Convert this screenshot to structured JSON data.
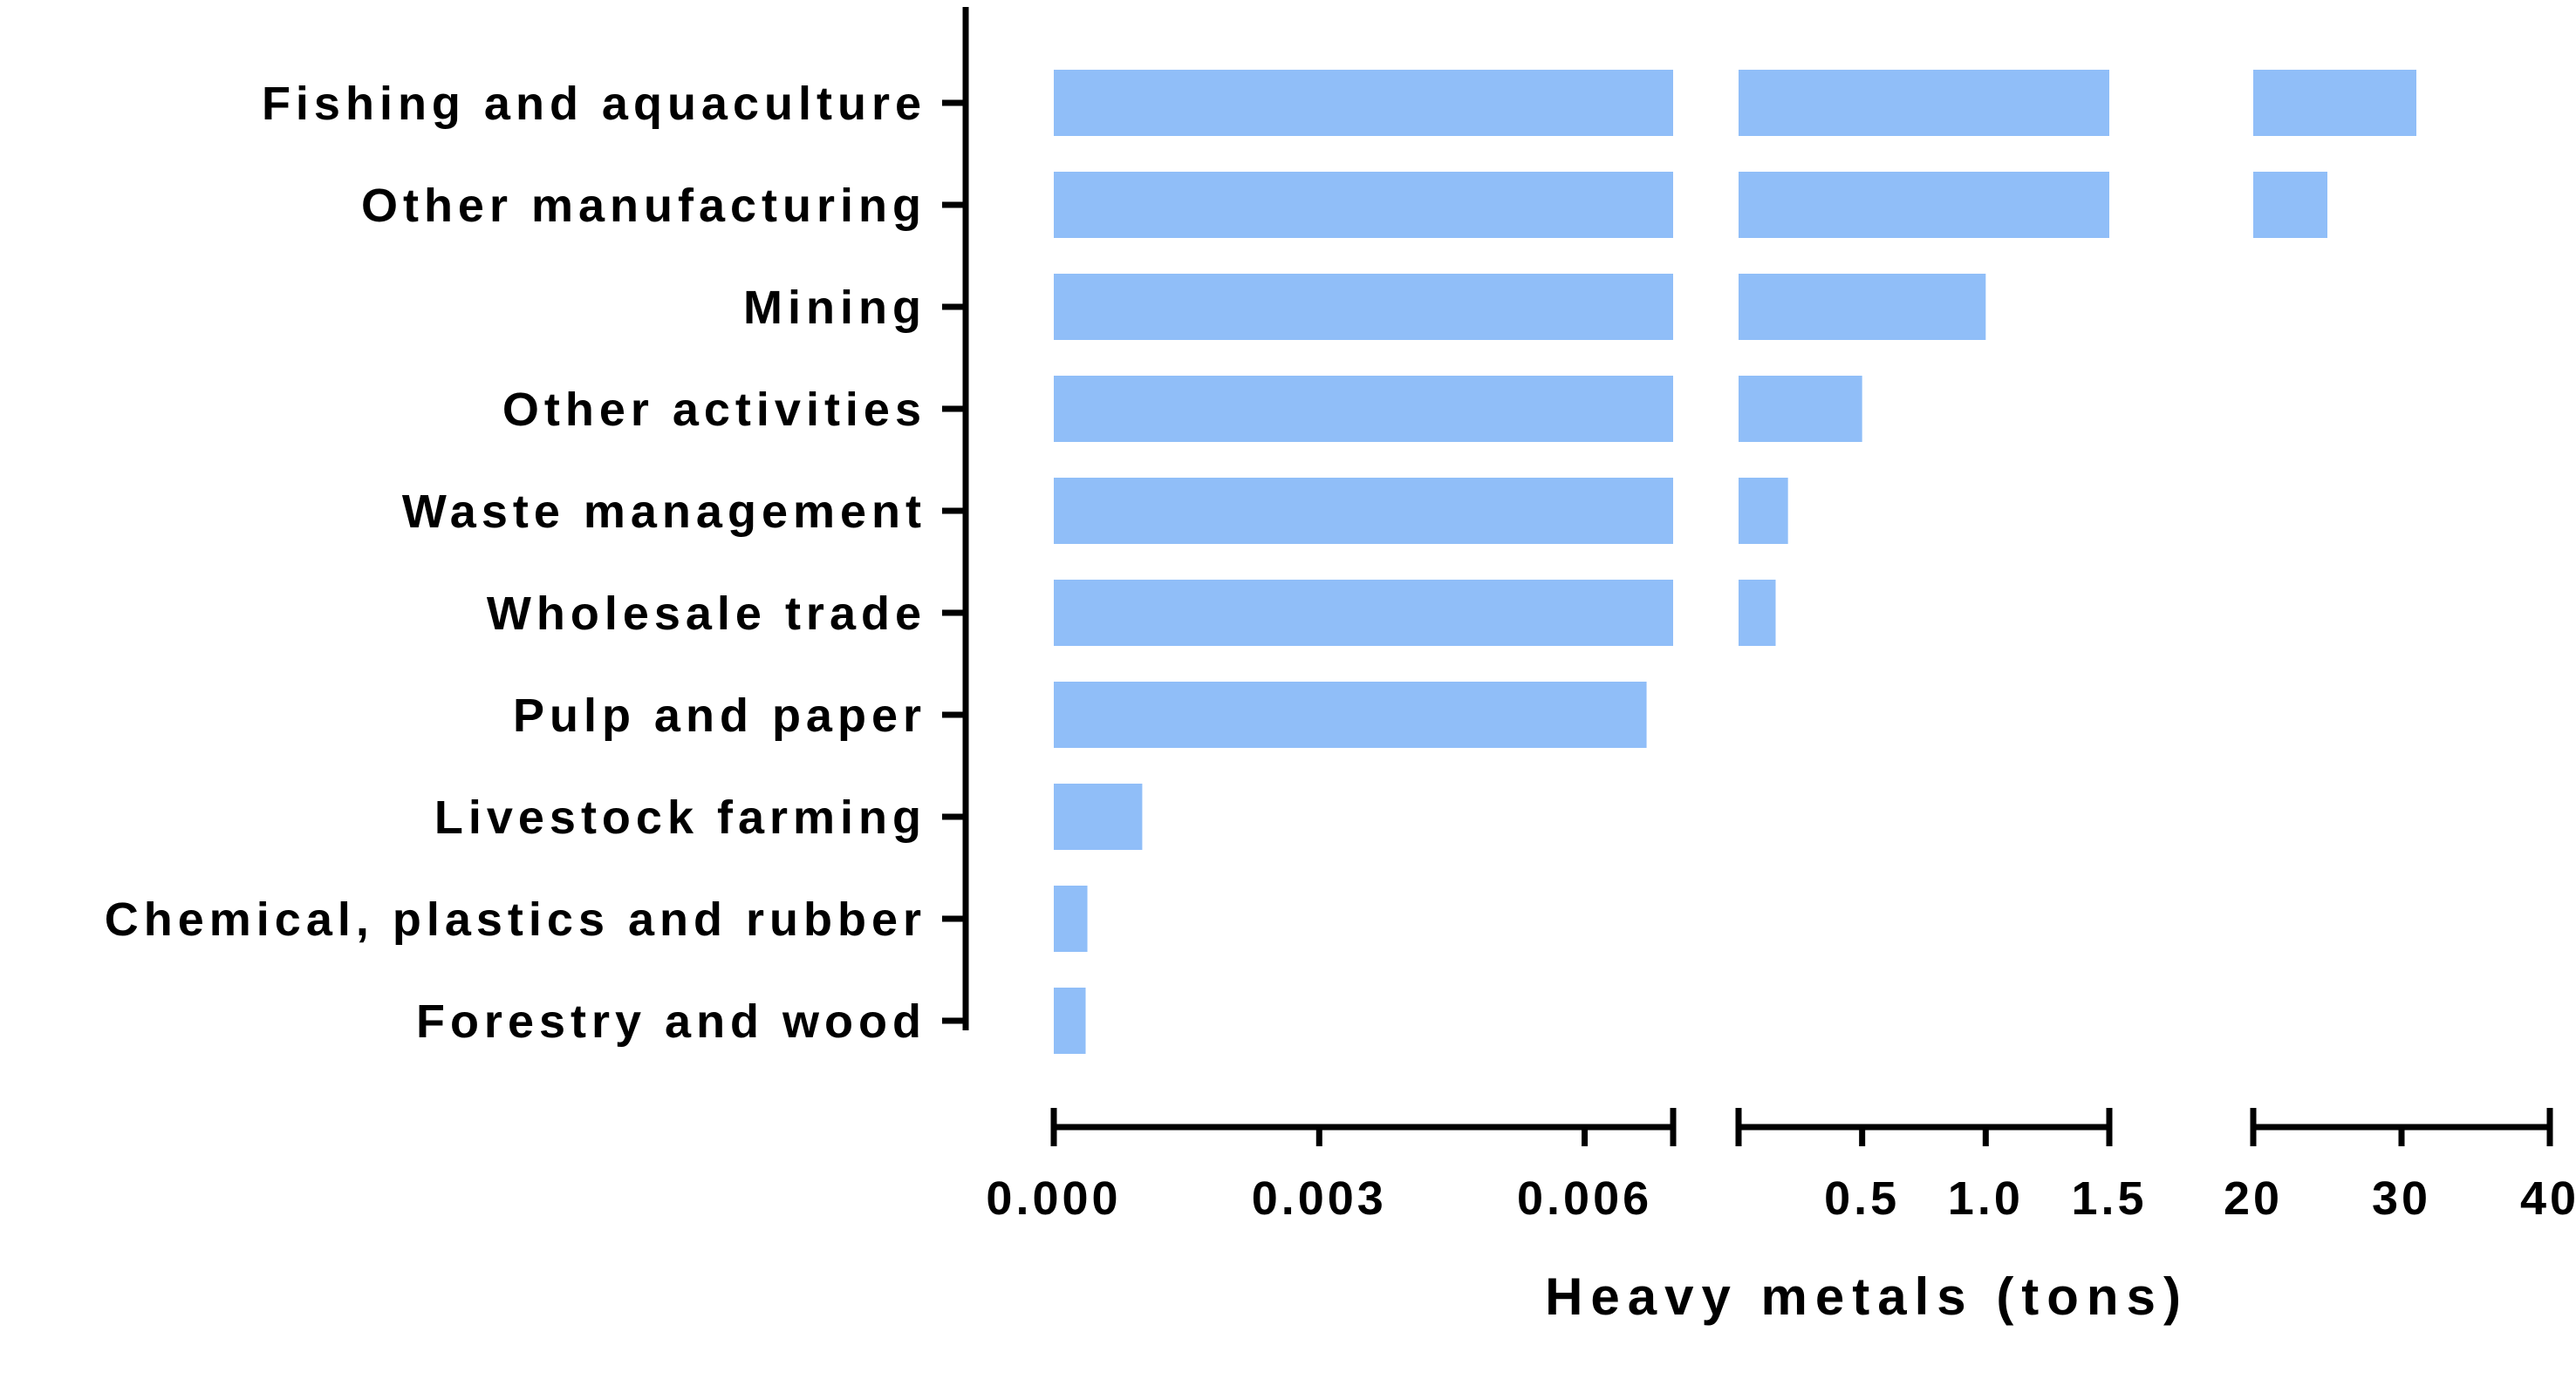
{
  "chart_data": {
    "type": "bar",
    "orientation": "horizontal",
    "title": "",
    "xlabel": "Heavy metals (tons)",
    "ylabel": "",
    "bar_color": "#90bef8",
    "categories": [
      "Fishing and aquaculture",
      "Other manufacturing",
      "Mining",
      "Other activities",
      "Waste management",
      "Wholesale trade",
      "Pulp and paper",
      "Livestock farming",
      "Chemical, plastics and rubber",
      "Forestry and wood"
    ],
    "values": [
      31,
      25,
      1.0,
      0.5,
      0.2,
      0.15,
      0.0067,
      0.001,
      0.00038,
      0.00036
    ],
    "x_axis_segments": [
      {
        "range": [
          0,
          0.007
        ],
        "ticks": [
          0,
          0.003,
          0.006
        ],
        "tick_labels": [
          "0.000",
          "0.003",
          "0.006"
        ]
      },
      {
        "range": [
          0,
          1.5
        ],
        "ticks": [
          0.5,
          1.0,
          1.5
        ],
        "tick_labels": [
          "0.5",
          "1.0",
          "1.5"
        ]
      },
      {
        "range": [
          20,
          40
        ],
        "ticks": [
          20,
          30,
          40
        ],
        "tick_labels": [
          "20",
          "30",
          "40"
        ]
      }
    ],
    "grid": false,
    "legend": "none"
  }
}
